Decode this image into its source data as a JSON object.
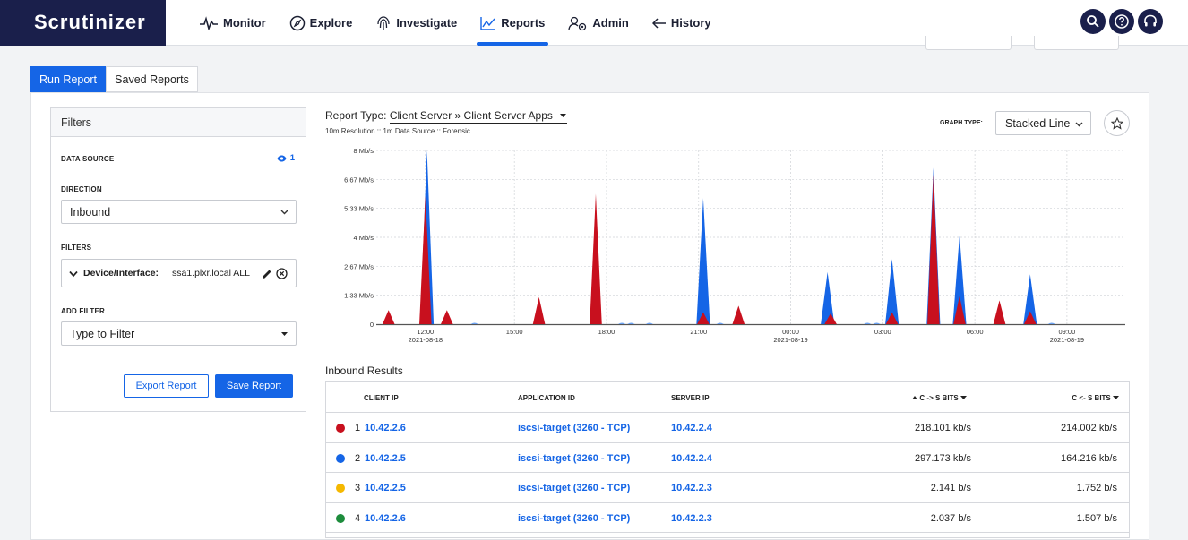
{
  "app": {
    "logo": "Scrutinizer"
  },
  "nav": [
    {
      "label": "Monitor",
      "icon": "pulse-icon"
    },
    {
      "label": "Explore",
      "icon": "compass-icon"
    },
    {
      "label": "Investigate",
      "icon": "fingerprint-icon"
    },
    {
      "label": "Reports",
      "icon": "chart-icon",
      "active": true
    },
    {
      "label": "Admin",
      "icon": "admin-gear-icon"
    },
    {
      "label": "History",
      "icon": "back-arrow-icon"
    }
  ],
  "tabs": {
    "run": "Run Report",
    "saved": "Saved Reports"
  },
  "filters": {
    "title": "Filters",
    "data_source_label": "DATA SOURCE",
    "data_source_count": "1",
    "direction_label": "DIRECTION",
    "direction_value": "Inbound",
    "filters_label": "FILTERS",
    "chip_key": "Device/Interface:",
    "chip_value": "ssa1.plxr.local ALL",
    "add_filter_label": "ADD FILTER",
    "add_filter_placeholder": "Type to Filter",
    "export_label": "Export Report",
    "save_label": "Save Report"
  },
  "report": {
    "type_label": "Report Type:",
    "type_value": "Client Server » Client Server Apps",
    "subtitle": "10m Resolution :: 1m Data Source :: Forensic",
    "graph_type_label": "GRAPH TYPE:",
    "graph_type_value": "Stacked Line"
  },
  "chart_data": {
    "type": "area",
    "stacked": true,
    "y_ticks": [
      "8 Mb/s",
      "6.67 Mb/s",
      "5.33 Mb/s",
      "4 Mb/s",
      "2.67 Mb/s",
      "1.33 Mb/s",
      "0"
    ],
    "ylim": [
      0,
      8
    ],
    "x_ticks": [
      {
        "t": 11.9,
        "label": "12:00",
        "sub": "2021-08-18"
      },
      {
        "t": 14.8,
        "label": "15:00",
        "sub": ""
      },
      {
        "t": 17.8,
        "label": "18:00",
        "sub": ""
      },
      {
        "t": 20.8,
        "label": "21:00",
        "sub": ""
      },
      {
        "t": 23.8,
        "label": "00:00",
        "sub": "2021-08-19"
      },
      {
        "t": 26.8,
        "label": "03:00",
        "sub": ""
      },
      {
        "t": 29.8,
        "label": "06:00",
        "sub": ""
      },
      {
        "t": 32.8,
        "label": "09:00",
        "sub": "2021-08-19"
      }
    ],
    "xlim": [
      10.3,
      34.7
    ],
    "grid": true,
    "series": [
      {
        "color": "#1565e6",
        "peaks": [
          [
            11.95,
            8.0
          ],
          [
            20.95,
            5.8
          ],
          [
            25.0,
            2.4
          ],
          [
            27.1,
            3.0
          ],
          [
            28.45,
            7.2
          ],
          [
            29.3,
            4.1
          ],
          [
            31.6,
            2.3
          ]
        ]
      },
      {
        "color": "#c8101e",
        "peaks": [
          [
            10.7,
            0.65
          ],
          [
            11.9,
            5.9
          ],
          [
            12.6,
            0.65
          ],
          [
            15.6,
            1.25
          ],
          [
            17.45,
            6.0
          ],
          [
            20.95,
            0.55
          ],
          [
            22.1,
            0.85
          ],
          [
            25.1,
            0.5
          ],
          [
            27.1,
            0.55
          ],
          [
            28.45,
            6.9
          ],
          [
            29.3,
            1.3
          ],
          [
            30.6,
            1.1
          ],
          [
            31.6,
            0.6
          ]
        ]
      }
    ]
  },
  "results": {
    "title": "Inbound Results",
    "columns": [
      "CLIENT IP",
      "APPLICATION ID",
      "SERVER IP",
      "C -> S BITS",
      "C <- S BITS"
    ],
    "rows": [
      {
        "color": "#c8101e",
        "idx": "1",
        "client": "10.42.2.6",
        "app": "iscsi-target (3260 - TCP)",
        "server": "10.42.2.4",
        "cs": "218.101 kb/s",
        "sc": "214.002 kb/s"
      },
      {
        "color": "#1565e6",
        "idx": "2",
        "client": "10.42.2.5",
        "app": "iscsi-target (3260 - TCP)",
        "server": "10.42.2.4",
        "cs": "297.173 kb/s",
        "sc": "164.216 kb/s"
      },
      {
        "color": "#f5b800",
        "idx": "3",
        "client": "10.42.2.5",
        "app": "iscsi-target (3260 - TCP)",
        "server": "10.42.2.3",
        "cs": "2.141 b/s",
        "sc": "1.752 b/s"
      },
      {
        "color": "#1d8c3c",
        "idx": "4",
        "client": "10.42.2.6",
        "app": "iscsi-target (3260 - TCP)",
        "server": "10.42.2.3",
        "cs": "2.037 b/s",
        "sc": "1.507 b/s"
      }
    ]
  }
}
